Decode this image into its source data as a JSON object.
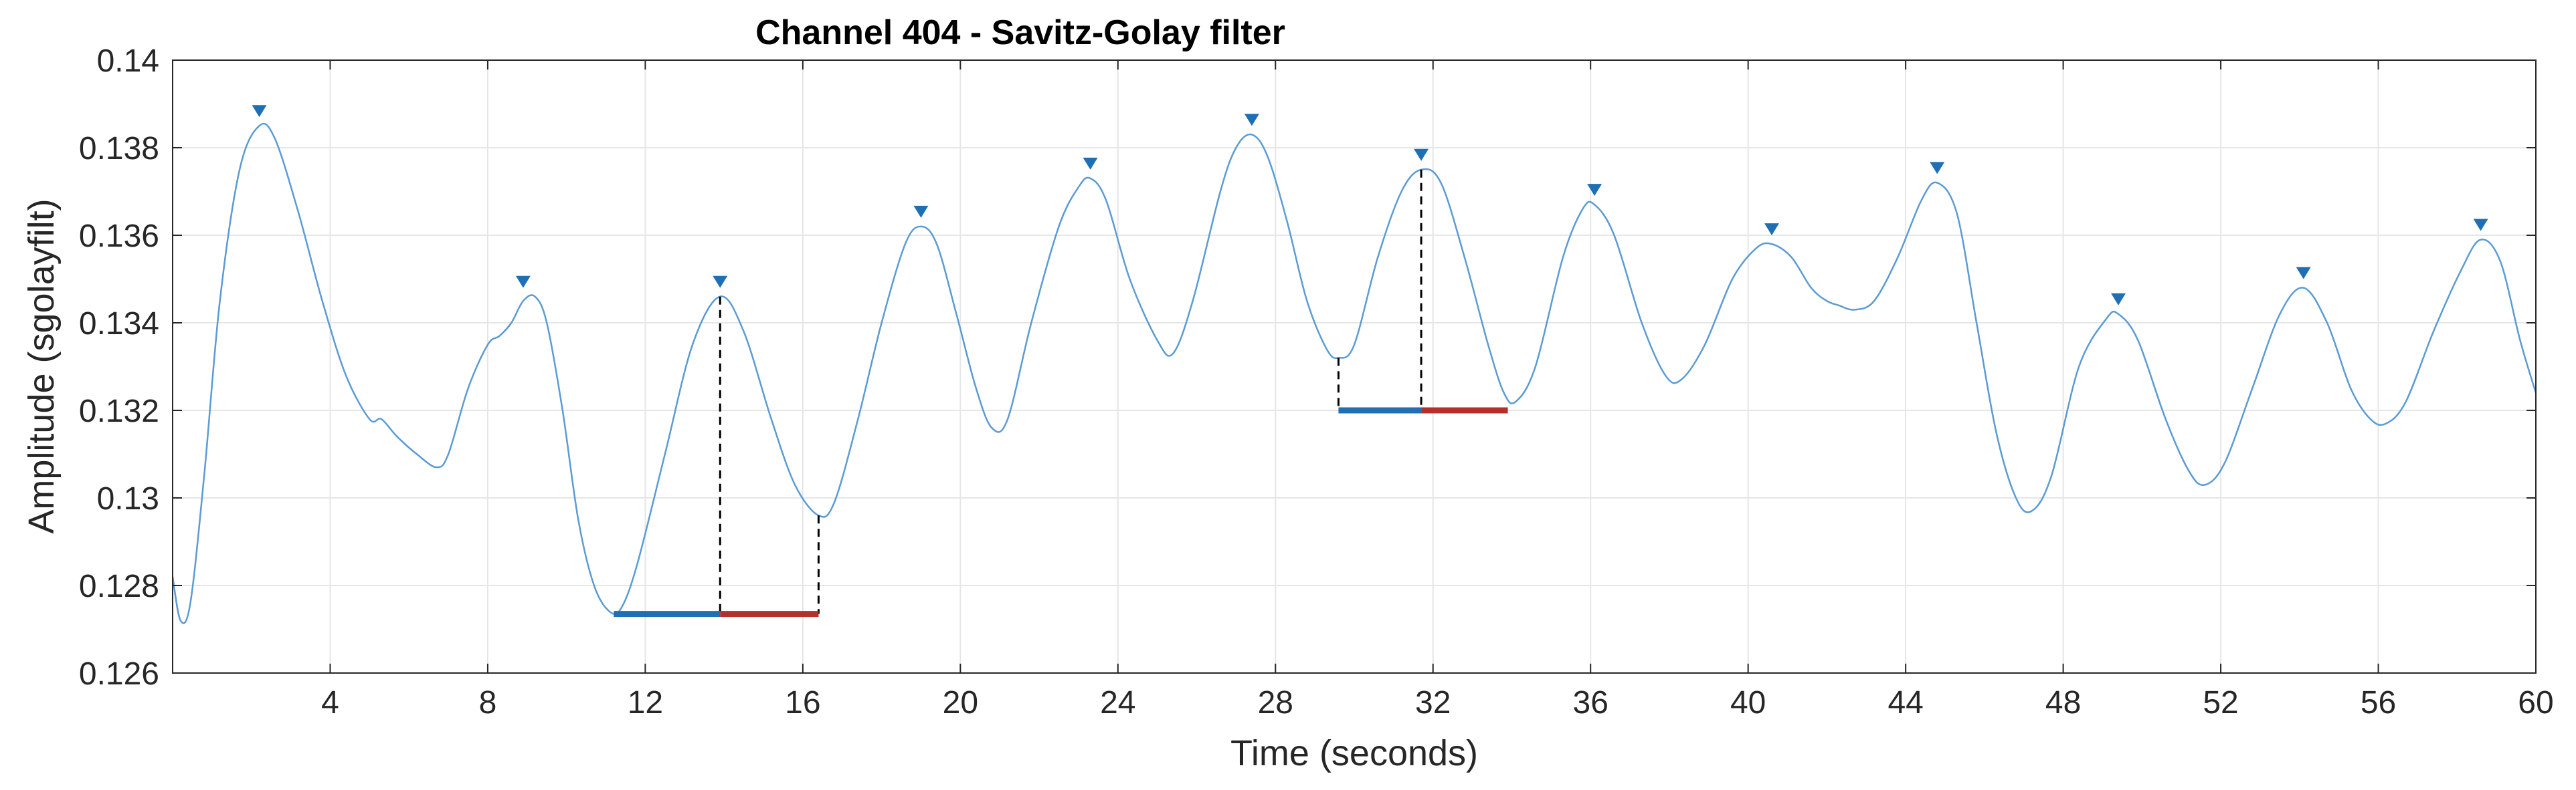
{
  "chart_data": {
    "type": "line",
    "title": "Channel 404 - Savitz-Golay filter",
    "xlabel": "Time (seconds)",
    "ylabel": "Amplitude (sgolayfilt)",
    "xlim": [
      0,
      60
    ],
    "ylim": [
      0.126,
      0.14
    ],
    "grid": true,
    "x_ticks": [
      4,
      8,
      12,
      16,
      20,
      24,
      28,
      32,
      36,
      40,
      44,
      48,
      52,
      56,
      60
    ],
    "y_ticks": [
      0.126,
      0.128,
      0.13,
      0.132,
      0.134,
      0.136,
      0.138,
      0.14
    ],
    "y_tick_labels": [
      "0.126",
      "0.128",
      "0.13",
      "0.132",
      "0.134",
      "0.136",
      "0.138",
      "0.14"
    ],
    "colors": {
      "signal": "#5b9bd5",
      "peak_marker": "#1f6fb4",
      "rise_segment": "#1f6fb4",
      "fall_segment": "#b5302c",
      "dashed": "#000000"
    },
    "series": [
      {
        "type": "line",
        "points": [
          [
            0.0,
            0.1282
          ],
          [
            0.2,
            0.1272
          ],
          [
            0.45,
            0.1276
          ],
          [
            0.8,
            0.1305
          ],
          [
            1.2,
            0.1345
          ],
          [
            1.7,
            0.1375
          ],
          [
            2.2,
            0.1385
          ],
          [
            2.6,
            0.1382
          ],
          [
            3.2,
            0.1365
          ],
          [
            3.8,
            0.1345
          ],
          [
            4.4,
            0.1328
          ],
          [
            5.0,
            0.1318
          ],
          [
            5.3,
            0.1318
          ],
          [
            5.7,
            0.1314
          ],
          [
            6.2,
            0.131
          ],
          [
            6.7,
            0.1307
          ],
          [
            7.0,
            0.131
          ],
          [
            7.5,
            0.1325
          ],
          [
            8.0,
            0.1335
          ],
          [
            8.3,
            0.1337
          ],
          [
            8.6,
            0.134
          ],
          [
            8.9,
            0.1345
          ],
          [
            9.2,
            0.1346
          ],
          [
            9.5,
            0.134
          ],
          [
            9.9,
            0.132
          ],
          [
            10.3,
            0.1295
          ],
          [
            10.7,
            0.128
          ],
          [
            11.1,
            0.1274
          ],
          [
            11.4,
            0.1275
          ],
          [
            11.8,
            0.1285
          ],
          [
            12.5,
            0.131
          ],
          [
            13.2,
            0.1335
          ],
          [
            13.9,
            0.1346
          ],
          [
            14.5,
            0.1338
          ],
          [
            15.2,
            0.1318
          ],
          [
            15.8,
            0.1303
          ],
          [
            16.4,
            0.1296
          ],
          [
            16.8,
            0.1299
          ],
          [
            17.4,
            0.1318
          ],
          [
            18.0,
            0.134
          ],
          [
            18.6,
            0.1358
          ],
          [
            19.0,
            0.1362
          ],
          [
            19.4,
            0.1358
          ],
          [
            19.9,
            0.1342
          ],
          [
            20.4,
            0.1325
          ],
          [
            20.8,
            0.1316
          ],
          [
            21.2,
            0.1318
          ],
          [
            21.8,
            0.134
          ],
          [
            22.5,
            0.1362
          ],
          [
            23.0,
            0.1371
          ],
          [
            23.3,
            0.1373
          ],
          [
            23.7,
            0.1368
          ],
          [
            24.3,
            0.135
          ],
          [
            25.0,
            0.1336
          ],
          [
            25.4,
            0.1333
          ],
          [
            25.9,
            0.1345
          ],
          [
            26.6,
            0.137
          ],
          [
            27.0,
            0.138
          ],
          [
            27.4,
            0.1383
          ],
          [
            27.8,
            0.1378
          ],
          [
            28.3,
            0.1363
          ],
          [
            28.8,
            0.1345
          ],
          [
            29.3,
            0.1334
          ],
          [
            29.6,
            0.1332
          ],
          [
            30.0,
            0.1335
          ],
          [
            30.6,
            0.1355
          ],
          [
            31.2,
            0.137
          ],
          [
            31.7,
            0.1375
          ],
          [
            32.2,
            0.1372
          ],
          [
            32.8,
            0.1355
          ],
          [
            33.4,
            0.1335
          ],
          [
            33.8,
            0.1324
          ],
          [
            34.1,
            0.1322
          ],
          [
            34.6,
            0.133
          ],
          [
            35.3,
            0.1355
          ],
          [
            35.8,
            0.1366
          ],
          [
            36.1,
            0.1367
          ],
          [
            36.6,
            0.136
          ],
          [
            37.3,
            0.134
          ],
          [
            37.9,
            0.1328
          ],
          [
            38.3,
            0.1327
          ],
          [
            38.9,
            0.1335
          ],
          [
            39.6,
            0.135
          ],
          [
            40.2,
            0.1357
          ],
          [
            40.6,
            0.1358
          ],
          [
            41.1,
            0.1355
          ],
          [
            41.6,
            0.1348
          ],
          [
            42.0,
            0.1345
          ],
          [
            42.3,
            0.1344
          ],
          [
            42.7,
            0.1343
          ],
          [
            43.2,
            0.1345
          ],
          [
            43.8,
            0.1355
          ],
          [
            44.4,
            0.1368
          ],
          [
            44.8,
            0.1372
          ],
          [
            45.3,
            0.1365
          ],
          [
            45.8,
            0.134
          ],
          [
            46.3,
            0.1315
          ],
          [
            46.8,
            0.13
          ],
          [
            47.2,
            0.1297
          ],
          [
            47.7,
            0.1305
          ],
          [
            48.4,
            0.133
          ],
          [
            49.1,
            0.1341
          ],
          [
            49.4,
            0.1342
          ],
          [
            49.9,
            0.1336
          ],
          [
            50.6,
            0.1318
          ],
          [
            51.2,
            0.1306
          ],
          [
            51.6,
            0.1303
          ],
          [
            52.1,
            0.1308
          ],
          [
            52.8,
            0.1325
          ],
          [
            53.5,
            0.1342
          ],
          [
            54.1,
            0.1348
          ],
          [
            54.7,
            0.134
          ],
          [
            55.3,
            0.1325
          ],
          [
            55.8,
            0.1318
          ],
          [
            56.2,
            0.1317
          ],
          [
            56.7,
            0.1322
          ],
          [
            57.4,
            0.1338
          ],
          [
            58.1,
            0.1352
          ],
          [
            58.6,
            0.1359
          ],
          [
            59.1,
            0.1354
          ],
          [
            59.6,
            0.1336
          ],
          [
            60.0,
            0.1324
          ]
        ]
      },
      {
        "type": "peaks",
        "points": [
          [
            2.2,
            0.1385
          ],
          [
            8.9,
            0.1346
          ],
          [
            13.9,
            0.1346
          ],
          [
            19.0,
            0.1362
          ],
          [
            23.3,
            0.1373
          ],
          [
            27.4,
            0.1383
          ],
          [
            31.7,
            0.1375
          ],
          [
            36.1,
            0.1367
          ],
          [
            40.6,
            0.1358
          ],
          [
            44.8,
            0.1372
          ],
          [
            49.4,
            0.1342
          ],
          [
            54.1,
            0.1348
          ],
          [
            58.6,
            0.1359
          ]
        ]
      }
    ],
    "annotations": [
      {
        "peak": [
          13.9,
          0.1346
        ],
        "base_y": 0.12735,
        "left_x": 11.2,
        "right_x": 16.4,
        "right_y": 0.1296
      },
      {
        "peak": [
          31.7,
          0.1375
        ],
        "base_y": 0.132,
        "left_x": 29.6,
        "left_y": 0.1332,
        "right_x": 33.9
      }
    ]
  }
}
